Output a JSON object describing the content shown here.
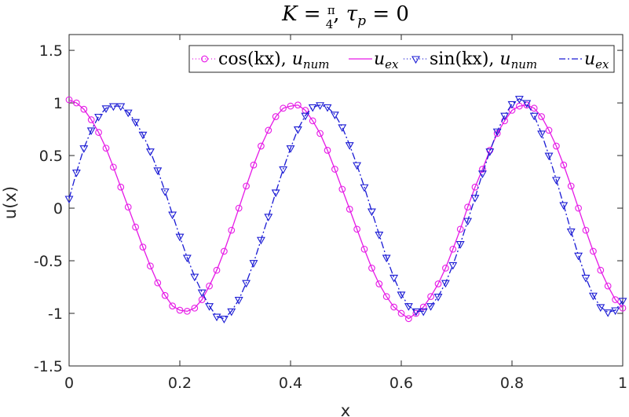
{
  "chart_data": {
    "type": "line",
    "title": {
      "parts": [
        "K",
        " = ",
        "π",
        "4",
        ", ",
        "τ",
        "p",
        " = 0"
      ]
    },
    "xlabel": "x",
    "ylabel": "u(x)",
    "xlim": [
      0,
      1
    ],
    "ylim": [
      -1.5,
      1.65
    ],
    "xticks": [
      0,
      0.2,
      0.4,
      0.6,
      0.8,
      1
    ],
    "xtick_labels": [
      "0",
      "0.2",
      "0.4",
      "0.6",
      "0.8",
      "1"
    ],
    "yticks": [
      -1.5,
      -1,
      -0.5,
      0,
      0.5,
      1,
      1.5
    ],
    "ytick_labels": [
      "-1.5",
      "-1",
      "-0.5",
      "0",
      "0.5",
      "1",
      "1.5"
    ],
    "grid": false,
    "legend_position": "top-right",
    "legend": [
      {
        "text": "cos(kx), ",
        "sub_main": "u",
        "sub": "num"
      },
      {
        "text": "",
        "sub_main": "u",
        "sub": "ex"
      },
      {
        "text": "sin(kx), ",
        "sub_main": "u",
        "sub": "num"
      },
      {
        "text": "",
        "sub_main": "u",
        "sub": "ex"
      }
    ],
    "series": [
      {
        "kind": "cos",
        "style": "dotted-circle",
        "color": "#e619e6",
        "x": [
          0,
          0.0133,
          0.0267,
          0.04,
          0.0533,
          0.0667,
          0.08,
          0.0933,
          0.1067,
          0.12,
          0.1333,
          0.1467,
          0.16,
          0.1733,
          0.1867,
          0.2,
          0.2133,
          0.2267,
          0.24,
          0.2533,
          0.2667,
          0.28,
          0.2933,
          0.3067,
          0.32,
          0.3333,
          0.3467,
          0.36,
          0.3733,
          0.3867,
          0.4,
          0.4133,
          0.4267,
          0.44,
          0.4533,
          0.4667,
          0.48,
          0.4933,
          0.5067,
          0.52,
          0.5333,
          0.5467,
          0.56,
          0.5733,
          0.5867,
          0.6,
          0.6133,
          0.6267,
          0.64,
          0.6533,
          0.6667,
          0.68,
          0.6933,
          0.7067,
          0.72,
          0.7333,
          0.7467,
          0.76,
          0.7733,
          0.7867,
          0.8,
          0.8133,
          0.8267,
          0.84,
          0.8533,
          0.8667,
          0.88,
          0.8933,
          0.9067,
          0.92,
          0.9333,
          0.9467,
          0.96,
          0.9733,
          0.9867,
          1
        ],
        "y": [
          1.03,
          1.0,
          0.94,
          0.84,
          0.72,
          0.57,
          0.39,
          0.2,
          0.01,
          -0.18,
          -0.37,
          -0.55,
          -0.71,
          -0.83,
          -0.93,
          -0.97,
          -0.98,
          -0.95,
          -0.87,
          -0.74,
          -0.59,
          -0.41,
          -0.21,
          0.0,
          0.21,
          0.41,
          0.59,
          0.74,
          0.87,
          0.95,
          0.97,
          0.98,
          0.93,
          0.83,
          0.71,
          0.55,
          0.37,
          0.18,
          -0.01,
          -0.2,
          -0.39,
          -0.57,
          -0.72,
          -0.84,
          -0.94,
          -1.0,
          -1.05,
          -1.0,
          -0.94,
          -0.84,
          -0.72,
          -0.57,
          -0.39,
          -0.2,
          0.01,
          0.2,
          0.37,
          0.55,
          0.71,
          0.83,
          0.93,
          0.97,
          0.98,
          0.95,
          0.87,
          0.74,
          0.59,
          0.41,
          0.21,
          0.0,
          -0.21,
          -0.41,
          -0.59,
          -0.74,
          -0.87,
          -0.95
        ]
      },
      {
        "kind": "sin",
        "style": "dashdot-triangle",
        "color": "#1a1ad4",
        "x": [
          0,
          0.0133,
          0.0267,
          0.04,
          0.0533,
          0.0667,
          0.08,
          0.0933,
          0.1067,
          0.12,
          0.1333,
          0.1467,
          0.16,
          0.1733,
          0.1867,
          0.2,
          0.2133,
          0.2267,
          0.24,
          0.2533,
          0.2667,
          0.28,
          0.2933,
          0.3067,
          0.32,
          0.3333,
          0.3467,
          0.36,
          0.3733,
          0.3867,
          0.4,
          0.4133,
          0.4267,
          0.44,
          0.4533,
          0.4667,
          0.48,
          0.4933,
          0.5067,
          0.52,
          0.5333,
          0.5467,
          0.56,
          0.5733,
          0.5867,
          0.6,
          0.6133,
          0.6267,
          0.64,
          0.6533,
          0.6667,
          0.68,
          0.6933,
          0.7067,
          0.72,
          0.7333,
          0.7467,
          0.76,
          0.7733,
          0.7867,
          0.8,
          0.8133,
          0.8267,
          0.84,
          0.8533,
          0.8667,
          0.88,
          0.8933,
          0.9067,
          0.92,
          0.9333,
          0.9467,
          0.96,
          0.9733,
          0.9867,
          1
        ],
        "y": [
          0.09,
          0.34,
          0.57,
          0.74,
          0.87,
          0.95,
          0.97,
          0.97,
          0.91,
          0.82,
          0.7,
          0.54,
          0.36,
          0.16,
          -0.06,
          -0.27,
          -0.47,
          -0.65,
          -0.8,
          -0.93,
          -1.03,
          -1.05,
          -0.98,
          -0.87,
          -0.71,
          -0.52,
          -0.3,
          -0.08,
          0.15,
          0.37,
          0.57,
          0.75,
          0.88,
          0.96,
          0.98,
          0.96,
          0.89,
          0.77,
          0.6,
          0.41,
          0.2,
          -0.03,
          -0.25,
          -0.47,
          -0.66,
          -0.82,
          -0.93,
          -0.98,
          -0.98,
          -0.93,
          -0.84,
          -0.71,
          -0.54,
          -0.34,
          -0.12,
          0.1,
          0.33,
          0.54,
          0.73,
          0.88,
          0.99,
          1.04,
          1.0,
          0.88,
          0.71,
          0.5,
          0.27,
          0.03,
          -0.22,
          -0.45,
          -0.66,
          -0.83,
          -0.94,
          -0.99,
          -0.97,
          -0.88
        ]
      }
    ]
  }
}
